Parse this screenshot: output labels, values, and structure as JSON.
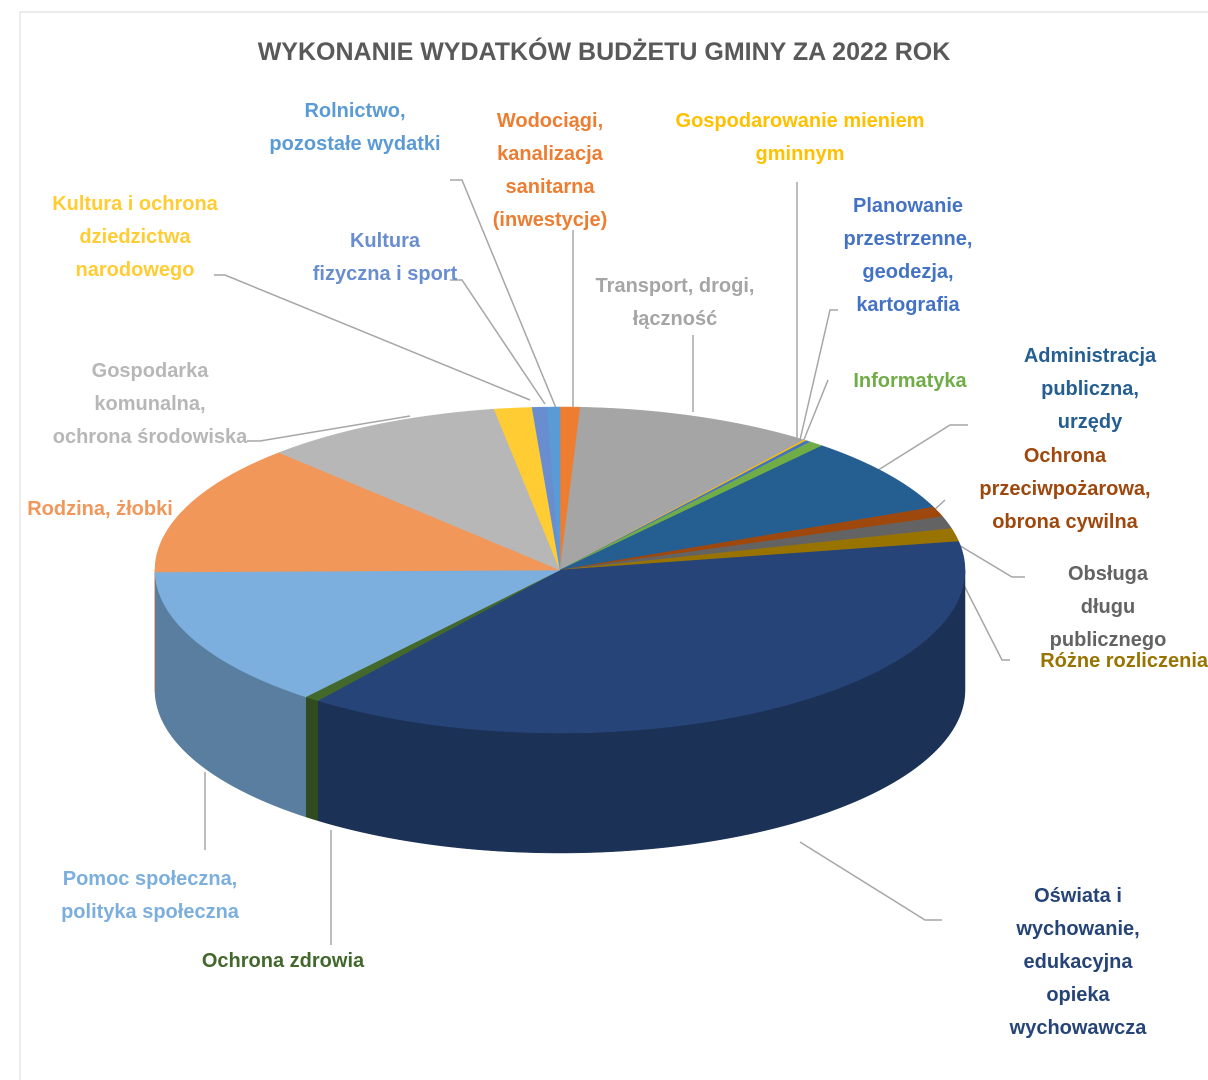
{
  "chart_data": {
    "type": "pie3d",
    "title": "WYKONANIE WYDATKÓW BUDŻETU GMINY ZA 2022 ROK",
    "categories": [
      "Wodociągi,\nkanalizacja\nsanitarna\n(inwestycje)",
      "Transport, drogi,\nłączność",
      "Gospodarowanie mieniem\ngminnym",
      "Planowanie\nprzestrzenne,\ngeodezja,\nkartografia",
      "Informatyka",
      "Administracja\npubliczna, urzędy",
      "Ochrona\nprzeciwpożarowa,\nobrona cywilna",
      "Obsługa długu\npublicznego",
      "Różne rozliczenia",
      "Oświata i wychowanie,\nedukacyjna opieka\nwychowawcza",
      "Ochrona zdrowia",
      "Pomoc społeczna,\npolityka społeczna",
      "Rodzina, żłobki",
      "Gospodarka\nkomunalna,\nochrona środowiska",
      "Kultura i ochrona\ndziedzictwa\nnarodowego",
      "Kultura\nfizyczna i sport",
      "Rolnictwo,\npozostałe wydatki"
    ],
    "values": [
      0.8,
      9.5,
      0.1,
      0.2,
      0.6,
      7.5,
      1.0,
      1.2,
      1.3,
      38,
      0.6,
      14,
      13,
      9.6,
      1.5,
      0.6,
      0.5
    ],
    "colors": [
      "#ed7d31",
      "#a5a5a5",
      "#ffc000",
      "#4472c4",
      "#70ad47",
      "#255e91",
      "#9e480e",
      "#636363",
      "#997300",
      "#264478",
      "#43682b",
      "#7cafdd",
      "#f1975a",
      "#b7b7b7",
      "#ffcd33",
      "#698ed0",
      "#5b9bd5"
    ]
  }
}
